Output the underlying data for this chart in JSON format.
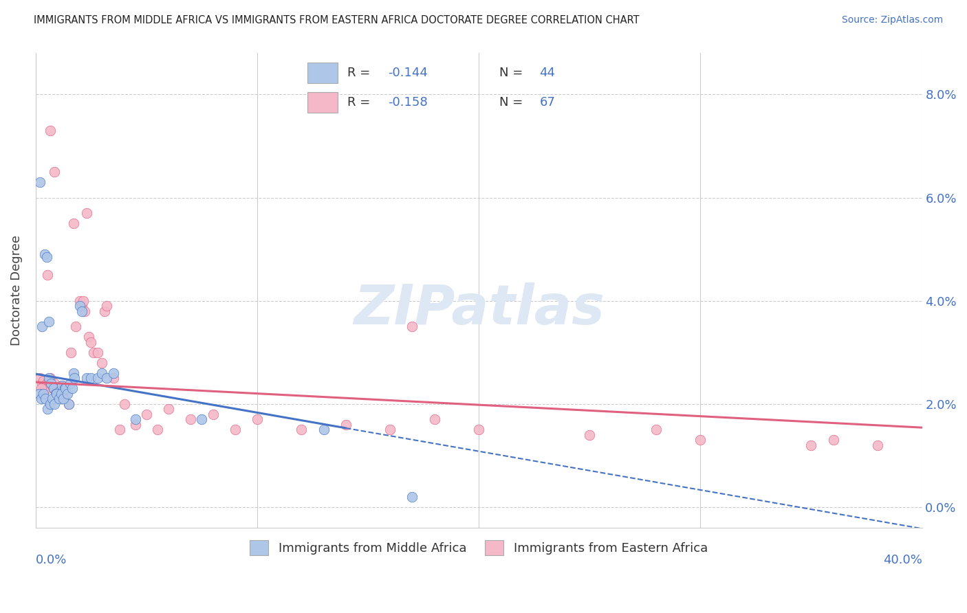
{
  "title": "IMMIGRANTS FROM MIDDLE AFRICA VS IMMIGRANTS FROM EASTERN AFRICA DOCTORATE DEGREE CORRELATION CHART",
  "source": "Source: ZipAtlas.com",
  "ylabel": "Doctorate Degree",
  "xlim": [
    0.0,
    40.0
  ],
  "ylim": [
    -0.4,
    8.8
  ],
  "color_blue": "#aec6e8",
  "color_pink": "#f4b8c8",
  "color_blue_line": "#4472c4",
  "color_pink_line": "#e06080",
  "watermark_color": "#dde8f4",
  "blue_x": [
    0.2,
    0.4,
    0.5,
    0.6,
    0.7,
    0.8,
    0.9,
    1.0,
    1.1,
    1.2,
    1.3,
    1.5,
    1.7,
    2.0,
    2.1,
    2.3,
    2.5,
    2.8,
    3.0,
    3.2,
    3.5,
    0.15,
    0.25,
    0.35,
    0.45,
    0.55,
    0.65,
    0.75,
    0.85,
    0.95,
    1.05,
    1.15,
    1.25,
    1.35,
    1.45,
    1.55,
    1.65,
    1.75,
    4.5,
    7.5,
    13.0,
    17.0,
    0.3,
    0.6
  ],
  "blue_y": [
    6.3,
    4.9,
    4.85,
    2.5,
    2.4,
    2.3,
    2.2,
    2.15,
    2.25,
    2.35,
    2.3,
    2.0,
    2.6,
    3.9,
    3.8,
    2.5,
    2.5,
    2.5,
    2.6,
    2.5,
    2.6,
    2.2,
    2.1,
    2.2,
    2.1,
    1.9,
    2.0,
    2.1,
    2.0,
    2.2,
    2.1,
    2.2,
    2.1,
    2.3,
    2.2,
    2.4,
    2.3,
    2.5,
    1.7,
    1.7,
    1.5,
    0.2,
    3.5,
    3.6
  ],
  "pink_x": [
    0.2,
    0.3,
    0.35,
    0.4,
    0.45,
    0.5,
    0.55,
    0.6,
    0.65,
    0.7,
    0.75,
    0.8,
    0.85,
    0.9,
    0.95,
    1.0,
    1.05,
    1.1,
    1.15,
    1.2,
    1.25,
    1.3,
    1.35,
    1.5,
    1.6,
    1.8,
    2.0,
    2.1,
    2.2,
    2.4,
    2.5,
    2.6,
    2.8,
    3.0,
    3.1,
    3.2,
    3.5,
    3.8,
    4.0,
    4.5,
    5.0,
    5.5,
    6.0,
    7.0,
    8.0,
    9.0,
    10.0,
    12.0,
    14.0,
    16.0,
    18.0,
    20.0,
    25.0,
    30.0,
    35.0,
    38.0,
    0.25,
    0.55,
    2.3,
    17.0,
    28.0,
    36.0,
    0.65,
    0.85,
    1.7,
    2.15
  ],
  "pink_y": [
    2.5,
    2.4,
    2.45,
    2.3,
    2.35,
    2.4,
    2.3,
    2.45,
    2.5,
    2.4,
    2.35,
    2.3,
    2.4,
    2.3,
    2.2,
    2.3,
    2.25,
    2.3,
    2.2,
    2.35,
    2.25,
    2.3,
    2.2,
    2.0,
    3.0,
    3.5,
    4.0,
    3.9,
    3.8,
    3.3,
    3.2,
    3.0,
    3.0,
    2.8,
    3.8,
    3.9,
    2.5,
    1.5,
    2.0,
    1.6,
    1.8,
    1.5,
    1.9,
    1.7,
    1.8,
    1.5,
    1.7,
    1.5,
    1.6,
    1.5,
    1.7,
    1.5,
    1.4,
    1.3,
    1.2,
    1.2,
    2.3,
    4.5,
    5.7,
    3.5,
    1.5,
    1.3,
    7.3,
    6.5,
    5.5,
    4.0
  ],
  "blue_slope": -0.075,
  "blue_intercept": 2.58,
  "blue_solid_end": 14.0,
  "blue_dash_end": 40.0,
  "pink_slope": -0.022,
  "pink_intercept": 2.42,
  "pink_solid_end": 40.0
}
